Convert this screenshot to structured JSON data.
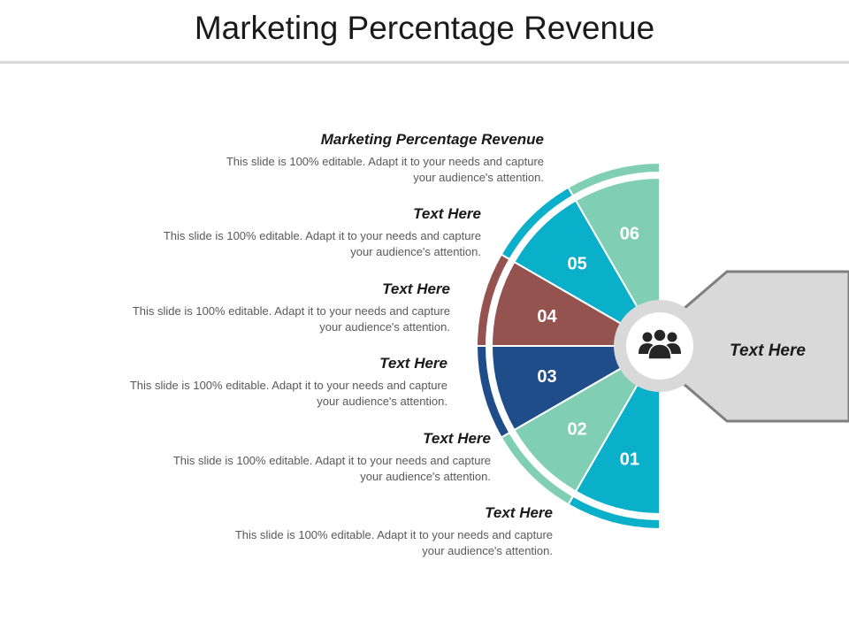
{
  "title": "Marketing Percentage Revenue",
  "items": [
    {
      "heading": "Marketing Percentage Revenue",
      "body": "This slide is 100% editable. Adapt it to your needs and capture your audience's attention."
    },
    {
      "heading": "Text Here",
      "body": "This slide is 100% editable. Adapt it to your needs and capture your audience's attention."
    },
    {
      "heading": "Text Here",
      "body": "This slide is 100% editable. Adapt it to your needs and capture your audience's attention."
    },
    {
      "heading": "Text Here",
      "body": "This slide is 100% editable. Adapt it to your needs and capture your audience's attention."
    },
    {
      "heading": "Text Here",
      "body": "This slide is 100% editable. Adapt it to your needs and capture your audience's attention."
    },
    {
      "heading": "Text Here",
      "body": "This slide is 100% editable. Adapt it to your needs and capture your audience's attention."
    }
  ],
  "segments": [
    {
      "label": "01",
      "color": "#0aafc9"
    },
    {
      "label": "02",
      "color": "#80cfb4"
    },
    {
      "label": "03",
      "color": "#1f4d8a"
    },
    {
      "label": "04",
      "color": "#955350"
    },
    {
      "label": "05",
      "color": "#0aafc9"
    },
    {
      "label": "06",
      "color": "#80cfb4"
    }
  ],
  "center_icon": "people-group-icon",
  "callout": {
    "label": "Text Here",
    "fill": "#d9d9d9",
    "stroke": "#7f7f7f"
  }
}
